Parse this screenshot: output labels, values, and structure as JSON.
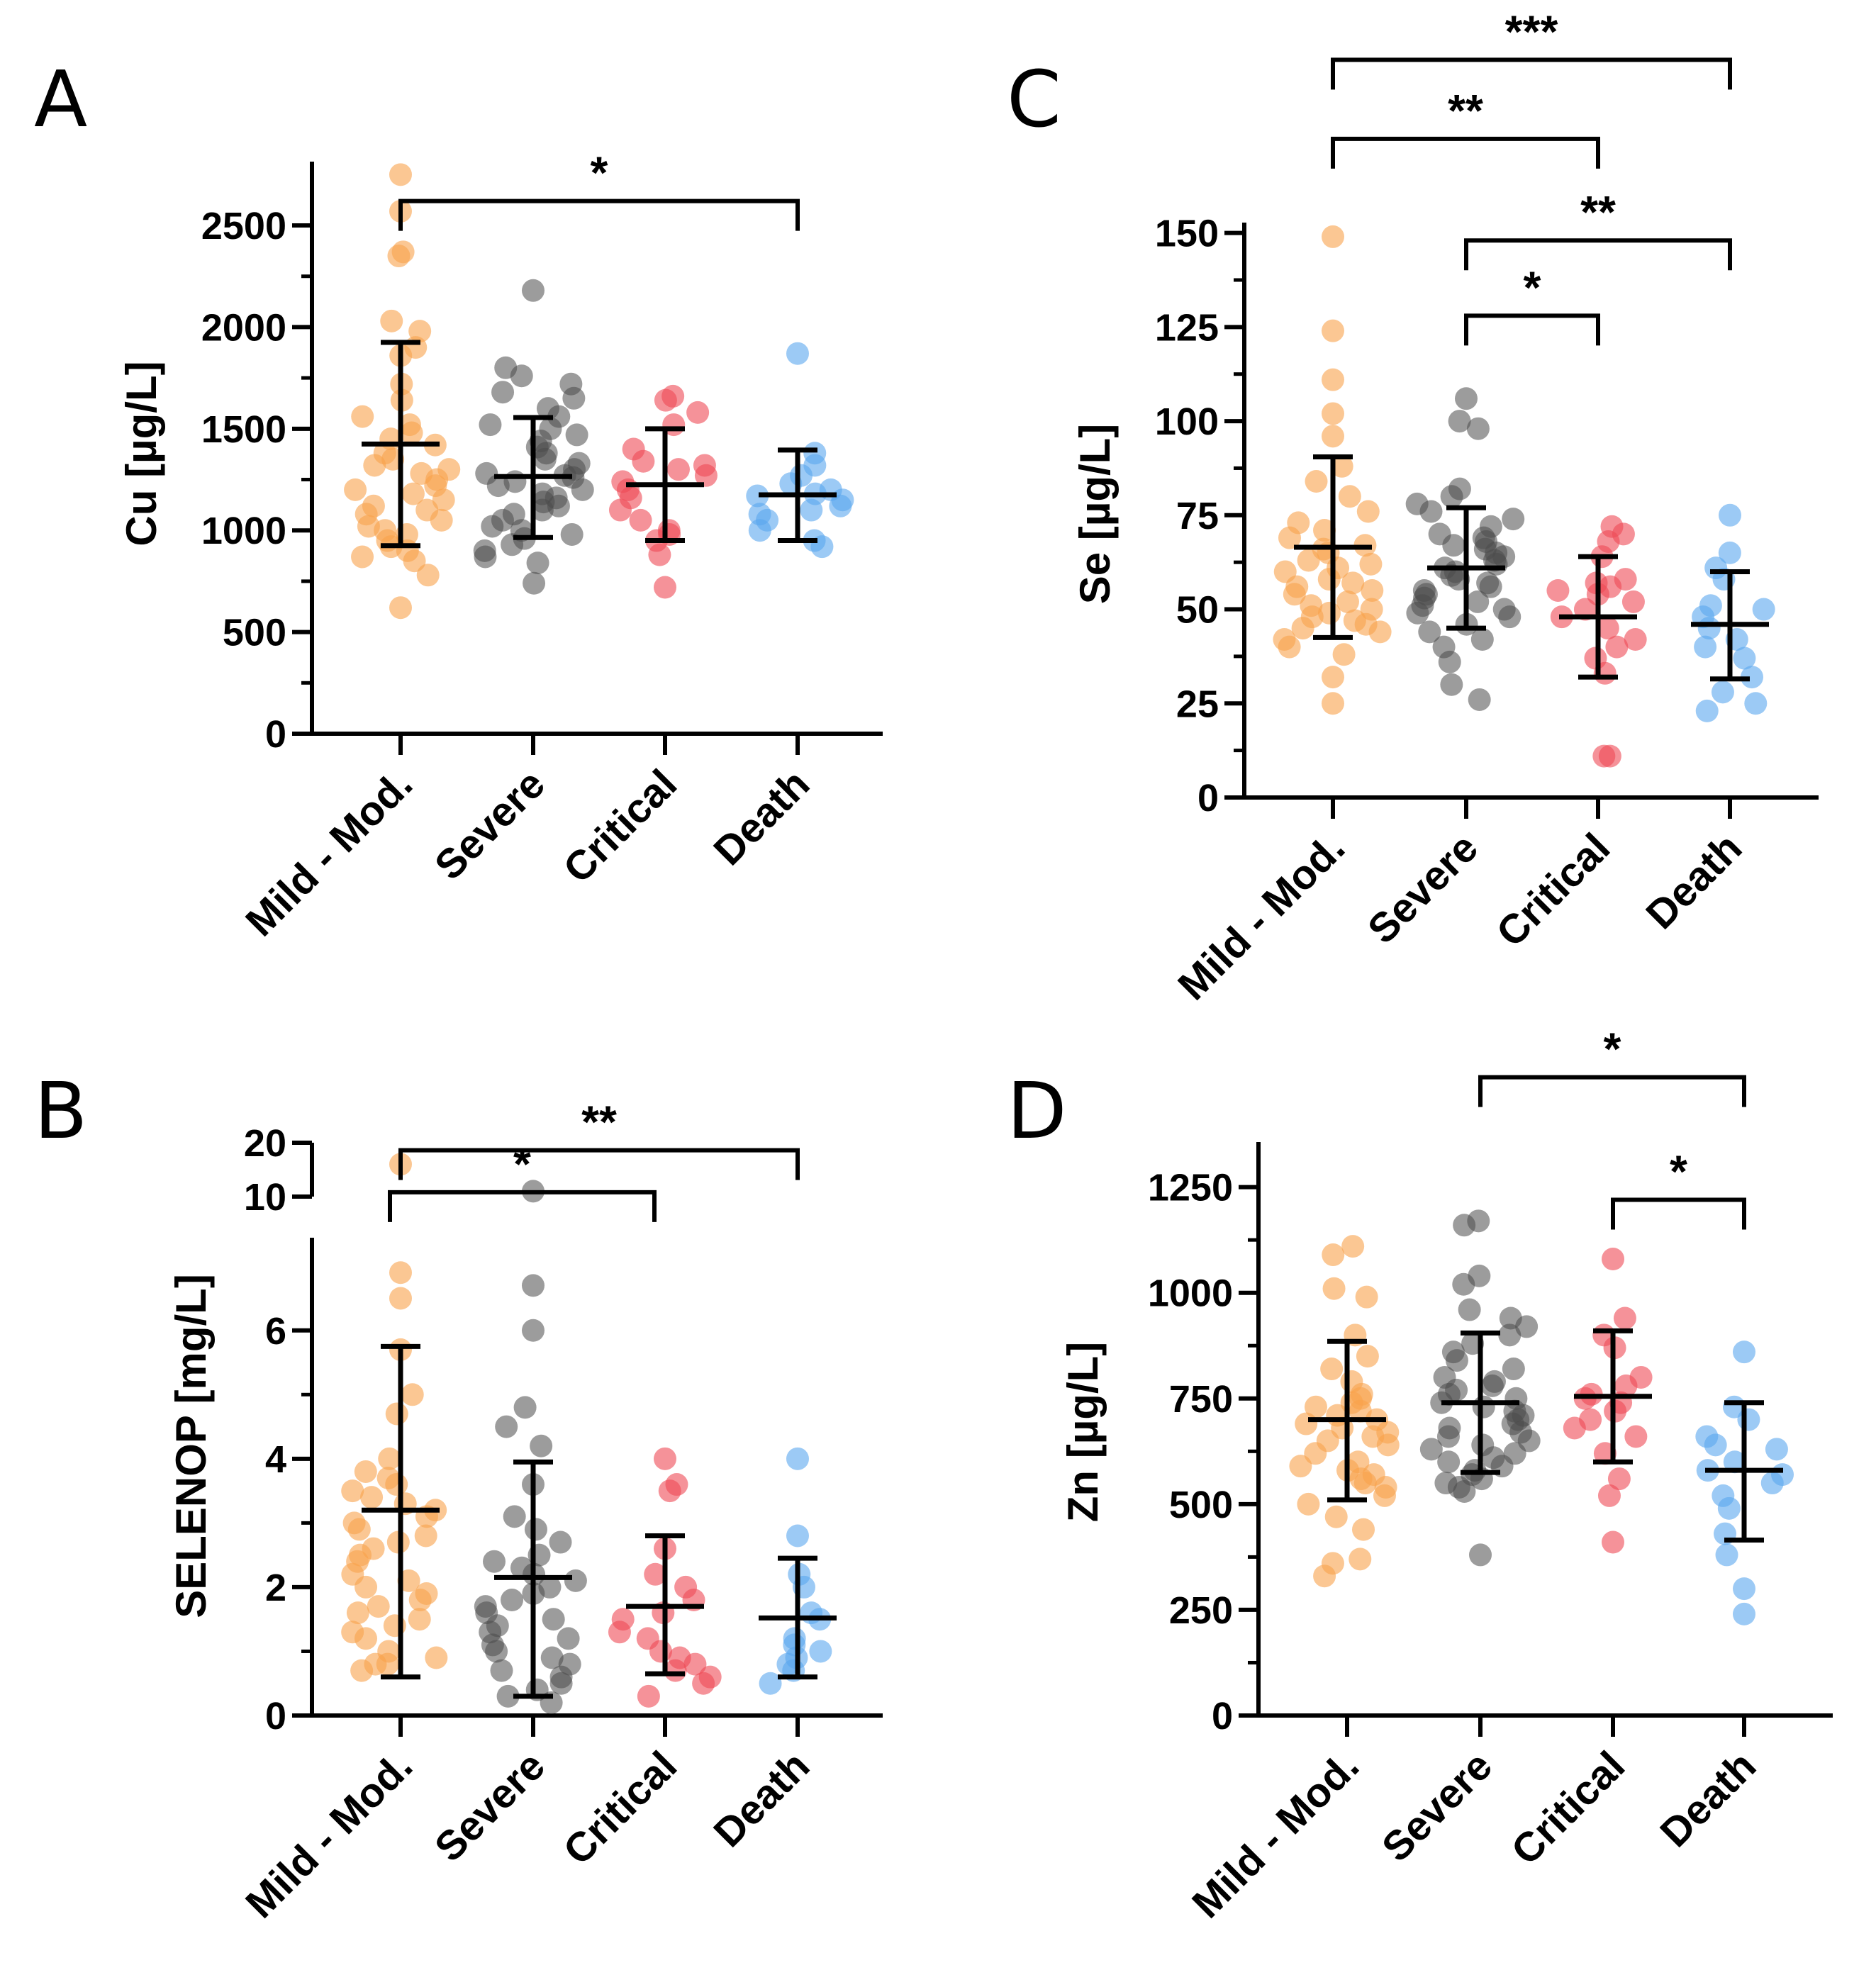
{
  "figure": {
    "colors": {
      "Mild - Mod.": "#f9a24b",
      "Severe": "#4a4a4a",
      "Critical": "#ee4a55",
      "Death": "#5aa6ee"
    }
  },
  "chart_data": [
    {
      "panel": "A",
      "type": "scatter",
      "ylabel": "Cu [µg/L]",
      "ylim": [
        0,
        2800
      ],
      "yticks": [
        0,
        500,
        1000,
        1500,
        2000,
        2500
      ],
      "categories": [
        "Mild - Mod.",
        "Severe",
        "Critical",
        "Death"
      ],
      "summary": [
        {
          "mean": 1425,
          "sd_low": 925,
          "sd_high": 1925
        },
        {
          "mean": 1265,
          "sd_low": 965,
          "sd_high": 1555
        },
        {
          "mean": 1225,
          "sd_low": 950,
          "sd_high": 1500
        },
        {
          "mean": 1175,
          "sd_low": 950,
          "sd_high": 1395
        }
      ],
      "points": [
        [
          2750,
          2570,
          2370,
          2350,
          2030,
          1980,
          1900,
          1860,
          1720,
          1640,
          1560,
          1520,
          1480,
          1450,
          1420,
          1380,
          1350,
          1320,
          1300,
          1280,
          1250,
          1220,
          1200,
          1180,
          1150,
          1120,
          1100,
          1080,
          1050,
          1020,
          1000,
          980,
          950,
          920,
          900,
          870,
          850,
          780,
          620
        ],
        [
          2180,
          1800,
          1760,
          1720,
          1680,
          1650,
          1600,
          1560,
          1520,
          1500,
          1470,
          1440,
          1410,
          1380,
          1350,
          1330,
          1300,
          1280,
          1270,
          1260,
          1240,
          1220,
          1200,
          1180,
          1160,
          1140,
          1120,
          1100,
          1080,
          1050,
          1020,
          1000,
          980,
          960,
          930,
          900,
          870,
          840,
          740
        ],
        [
          1660,
          1640,
          1580,
          1520,
          1400,
          1340,
          1320,
          1300,
          1270,
          1240,
          1200,
          1160,
          1100,
          1050,
          1000,
          980,
          950,
          880,
          720
        ],
        [
          1870,
          1380,
          1320,
          1270,
          1230,
          1200,
          1180,
          1170,
          1150,
          1120,
          1100,
          1080,
          1050,
          1000,
          950,
          920
        ]
      ],
      "significance": [
        {
          "from": 0,
          "to": 3,
          "label": "*",
          "level": 2620
        }
      ]
    },
    {
      "panel": "B",
      "type": "scatter",
      "ylabel": "SELENOP [mg/L]",
      "ylim": [
        0,
        7.4
      ],
      "upper_ylim": [
        10,
        20
      ],
      "yticks": [
        0,
        2,
        4,
        6
      ],
      "upper_yticks": [
        10,
        20
      ],
      "categories": [
        "Mild - Mod.",
        "Severe",
        "Critical",
        "Death"
      ],
      "summary": [
        {
          "mean": 3.2,
          "sd_low": 0.6,
          "sd_high": 5.75
        },
        {
          "mean": 2.15,
          "sd_low": 0.3,
          "sd_high": 3.95
        },
        {
          "mean": 1.7,
          "sd_low": 0.65,
          "sd_high": 2.8
        },
        {
          "mean": 1.52,
          "sd_low": 0.6,
          "sd_high": 2.45
        }
      ],
      "points": [
        [
          16,
          6.9,
          6.5,
          5.7,
          5.0,
          4.7,
          4.0,
          3.8,
          3.7,
          3.6,
          3.5,
          3.4,
          3.3,
          3.2,
          3.1,
          3.0,
          2.9,
          2.8,
          2.7,
          2.6,
          2.5,
          2.4,
          2.2,
          2.1,
          2.0,
          1.9,
          1.8,
          1.7,
          1.6,
          1.5,
          1.4,
          1.3,
          1.2,
          1.0,
          0.9,
          0.8,
          0.8,
          0.7
        ],
        [
          11,
          6.7,
          6.0,
          4.8,
          4.5,
          4.2,
          3.6,
          3.1,
          2.9,
          2.7,
          2.5,
          2.4,
          2.3,
          2.2,
          2.1,
          2.0,
          1.9,
          1.8,
          1.7,
          1.6,
          1.5,
          1.4,
          1.3,
          1.2,
          1.1,
          1.0,
          0.9,
          0.8,
          0.7,
          0.6,
          0.5,
          0.4,
          0.3,
          0.2
        ],
        [
          4.0,
          3.6,
          3.5,
          2.6,
          2.2,
          2.0,
          1.8,
          1.6,
          1.5,
          1.3,
          1.2,
          1.0,
          0.9,
          0.8,
          0.7,
          0.6,
          0.5,
          0.3
        ],
        [
          4.0,
          2.8,
          2.2,
          2.0,
          1.6,
          1.5,
          1.2,
          1.1,
          1.0,
          0.9,
          0.8,
          0.7,
          0.5
        ]
      ],
      "significance": [
        {
          "from": 0,
          "to": 3,
          "label": "**",
          "level": 18.6
        },
        {
          "from": 0,
          "to": 2,
          "label": "*",
          "level": 10.8
        }
      ]
    },
    {
      "panel": "C",
      "type": "scatter",
      "ylabel": "Se [µg/L]",
      "ylim": [
        0,
        152
      ],
      "yticks": [
        0,
        25,
        50,
        75,
        100,
        125,
        150
      ],
      "categories": [
        "Mild - Mod.",
        "Severe",
        "Critical",
        "Death"
      ],
      "summary": [
        {
          "mean": 66.5,
          "sd_low": 42.5,
          "sd_high": 90.5
        },
        {
          "mean": 61,
          "sd_low": 45,
          "sd_high": 77
        },
        {
          "mean": 48,
          "sd_low": 32,
          "sd_high": 64
        },
        {
          "mean": 46,
          "sd_low": 31.5,
          "sd_high": 60
        }
      ],
      "points": [
        [
          149,
          124,
          111,
          102,
          96,
          88,
          84,
          80,
          76,
          73,
          71,
          69,
          67,
          66,
          65,
          63,
          62,
          61,
          60,
          58,
          57,
          56,
          55,
          54,
          52,
          51,
          50,
          49,
          48,
          47,
          46,
          45,
          44,
          42,
          40,
          38,
          32,
          25
        ],
        [
          106,
          100,
          98,
          82,
          80,
          78,
          76,
          74,
          72,
          70,
          69,
          68,
          67,
          66,
          65,
          64,
          63,
          62,
          61,
          60,
          59,
          58,
          57,
          56,
          55,
          54,
          53,
          52,
          51,
          50,
          49,
          48,
          46,
          44,
          42,
          40,
          36,
          30,
          26
        ],
        [
          72,
          70,
          68,
          64,
          58,
          57,
          56,
          55,
          54,
          52,
          50,
          48,
          45,
          42,
          40,
          37,
          33,
          11,
          11
        ],
        [
          75,
          65,
          61,
          58,
          51,
          50,
          48,
          45,
          42,
          40,
          37,
          32,
          28,
          25,
          23
        ]
      ],
      "significance": [
        {
          "from": 0,
          "to": 3,
          "label": "***",
          "level": 196
        },
        {
          "from": 0,
          "to": 2,
          "label": "**",
          "level": 175
        },
        {
          "from": 1,
          "to": 3,
          "label": "**",
          "level": 148
        },
        {
          "from": 1,
          "to": 2,
          "label": "*",
          "level": 128
        }
      ]
    },
    {
      "panel": "D",
      "type": "scatter",
      "ylabel": "Zn [µg/L]",
      "ylim": [
        0,
        1350
      ],
      "yticks": [
        0,
        250,
        500,
        750,
        1000,
        1250
      ],
      "categories": [
        "Mild - Mod.",
        "Severe",
        "Critical",
        "Death"
      ],
      "summary": [
        {
          "mean": 700,
          "sd_low": 510,
          "sd_high": 885
        },
        {
          "mean": 740,
          "sd_low": 575,
          "sd_high": 905
        },
        {
          "mean": 755,
          "sd_low": 600,
          "sd_high": 910
        },
        {
          "mean": 580,
          "sd_low": 415,
          "sd_high": 740
        }
      ],
      "points": [
        [
          1110,
          1090,
          1010,
          990,
          900,
          850,
          820,
          790,
          760,
          750,
          740,
          730,
          720,
          710,
          700,
          690,
          680,
          670,
          660,
          650,
          640,
          620,
          600,
          590,
          580,
          570,
          560,
          550,
          540,
          520,
          500,
          470,
          440,
          370,
          360,
          330
        ],
        [
          1170,
          1160,
          1040,
          1020,
          960,
          940,
          920,
          900,
          880,
          860,
          840,
          820,
          800,
          790,
          780,
          770,
          760,
          750,
          740,
          730,
          720,
          710,
          700,
          690,
          680,
          670,
          660,
          650,
          640,
          630,
          620,
          610,
          600,
          590,
          580,
          570,
          560,
          550,
          540,
          530,
          380
        ],
        [
          1080,
          940,
          900,
          870,
          800,
          780,
          760,
          750,
          740,
          720,
          700,
          680,
          660,
          620,
          560,
          520,
          410
        ],
        [
          860,
          730,
          700,
          660,
          640,
          630,
          600,
          580,
          570,
          550,
          520,
          490,
          430,
          380,
          300,
          240
        ]
      ],
      "significance": [
        {
          "from": 1,
          "to": 3,
          "label": "*",
          "level": 1510
        },
        {
          "from": 2,
          "to": 3,
          "label": "*",
          "level": 1220
        }
      ]
    }
  ],
  "panels": [
    {
      "letter": "A"
    },
    {
      "letter": "B"
    },
    {
      "letter": "C"
    },
    {
      "letter": "D"
    }
  ]
}
